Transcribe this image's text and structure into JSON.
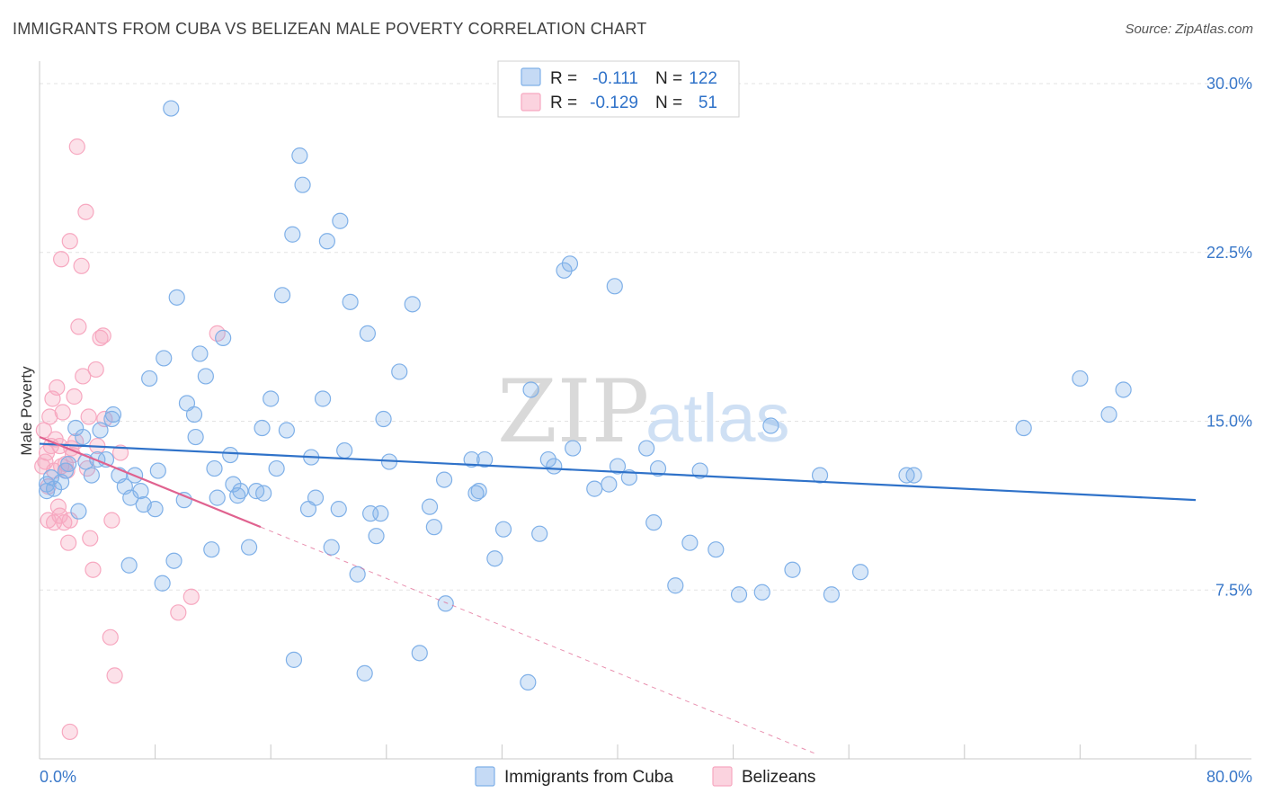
{
  "chart_data": {
    "type": "scatter",
    "title": "IMMIGRANTS FROM CUBA VS BELIZEAN MALE POVERTY CORRELATION CHART",
    "source": "Source: ZipAtlas.com",
    "xlabel": "",
    "ylabel": "Male Poverty",
    "xlim": [
      0,
      80
    ],
    "ylim": [
      0,
      31
    ],
    "x_tick_labels": [
      "0.0%",
      "80.0%"
    ],
    "y_ticks": [
      7.5,
      15.0,
      22.5,
      30.0
    ],
    "y_tick_labels": [
      "7.5%",
      "15.0%",
      "22.5%",
      "30.0%"
    ],
    "grid": true,
    "watermark": {
      "zip": "ZIP",
      "atlas": "atlas"
    },
    "legend_top": [
      {
        "r_label": "R =",
        "r_value": "-0.111",
        "n_label": "N =",
        "n_value": "122"
      },
      {
        "r_label": "R =",
        "r_value": "-0.129",
        "n_label": "N =",
        "n_value": "51"
      }
    ],
    "series": [
      {
        "name": "Immigrants from Cuba",
        "color": "#7fb0e8",
        "line_color": "#2f72c9",
        "trend": {
          "x0": 0,
          "y0": 14.0,
          "x1": 80,
          "y1": 11.5
        },
        "points": [
          [
            0.5,
            12.2
          ],
          [
            0.8,
            12.5
          ],
          [
            0.5,
            11.9
          ],
          [
            1.0,
            12.0
          ],
          [
            1.5,
            12.3
          ],
          [
            1.8,
            12.8
          ],
          [
            2.0,
            13.1
          ],
          [
            2.5,
            14.7
          ],
          [
            2.7,
            11.0
          ],
          [
            3.0,
            14.3
          ],
          [
            3.2,
            13.2
          ],
          [
            3.6,
            12.6
          ],
          [
            4.0,
            13.3
          ],
          [
            4.2,
            14.6
          ],
          [
            4.6,
            13.3
          ],
          [
            5.0,
            15.1
          ],
          [
            5.1,
            15.3
          ],
          [
            5.5,
            12.6
          ],
          [
            5.9,
            12.1
          ],
          [
            6.2,
            8.6
          ],
          [
            6.3,
            11.6
          ],
          [
            6.6,
            12.6
          ],
          [
            7.0,
            11.9
          ],
          [
            7.2,
            11.3
          ],
          [
            7.6,
            16.9
          ],
          [
            8.0,
            11.1
          ],
          [
            8.2,
            12.8
          ],
          [
            8.5,
            7.8
          ],
          [
            8.6,
            17.8
          ],
          [
            9.1,
            28.9
          ],
          [
            9.3,
            8.8
          ],
          [
            9.5,
            20.5
          ],
          [
            10.0,
            11.5
          ],
          [
            10.2,
            15.8
          ],
          [
            10.7,
            15.3
          ],
          [
            10.8,
            14.3
          ],
          [
            11.1,
            18.0
          ],
          [
            11.5,
            17.0
          ],
          [
            11.9,
            9.3
          ],
          [
            12.1,
            12.9
          ],
          [
            12.3,
            11.6
          ],
          [
            12.7,
            18.7
          ],
          [
            13.2,
            13.5
          ],
          [
            13.4,
            12.2
          ],
          [
            13.7,
            11.7
          ],
          [
            13.9,
            11.9
          ],
          [
            14.5,
            9.4
          ],
          [
            15.0,
            11.9
          ],
          [
            15.4,
            14.7
          ],
          [
            15.5,
            11.8
          ],
          [
            16.0,
            16.0
          ],
          [
            16.4,
            12.9
          ],
          [
            16.8,
            20.6
          ],
          [
            17.1,
            14.6
          ],
          [
            17.5,
            23.3
          ],
          [
            17.6,
            4.4
          ],
          [
            18.0,
            26.8
          ],
          [
            18.2,
            25.5
          ],
          [
            18.6,
            11.1
          ],
          [
            18.8,
            13.4
          ],
          [
            19.1,
            11.6
          ],
          [
            19.6,
            16.0
          ],
          [
            19.9,
            23.0
          ],
          [
            20.2,
            9.4
          ],
          [
            20.7,
            11.1
          ],
          [
            20.8,
            23.9
          ],
          [
            21.1,
            13.7
          ],
          [
            21.5,
            20.3
          ],
          [
            22.0,
            8.2
          ],
          [
            22.5,
            3.8
          ],
          [
            22.7,
            18.9
          ],
          [
            22.9,
            10.9
          ],
          [
            23.3,
            9.9
          ],
          [
            23.6,
            10.9
          ],
          [
            23.8,
            15.1
          ],
          [
            24.2,
            13.2
          ],
          [
            24.9,
            17.2
          ],
          [
            25.8,
            20.2
          ],
          [
            26.3,
            4.7
          ],
          [
            27.0,
            11.2
          ],
          [
            27.3,
            10.3
          ],
          [
            28.0,
            12.4
          ],
          [
            28.1,
            6.9
          ],
          [
            29.9,
            13.3
          ],
          [
            30.2,
            11.8
          ],
          [
            30.4,
            11.9
          ],
          [
            30.8,
            13.3
          ],
          [
            31.5,
            8.9
          ],
          [
            32.1,
            10.2
          ],
          [
            33.8,
            3.4
          ],
          [
            34.0,
            16.4
          ],
          [
            34.6,
            10.0
          ],
          [
            35.2,
            13.3
          ],
          [
            35.6,
            13.0
          ],
          [
            36.3,
            21.7
          ],
          [
            36.7,
            22.0
          ],
          [
            36.9,
            13.8
          ],
          [
            38.4,
            12.0
          ],
          [
            39.4,
            12.2
          ],
          [
            39.8,
            21.0
          ],
          [
            40.0,
            13.0
          ],
          [
            40.8,
            12.5
          ],
          [
            42.0,
            13.8
          ],
          [
            42.5,
            10.5
          ],
          [
            42.8,
            12.9
          ],
          [
            44.0,
            7.7
          ],
          [
            45.0,
            9.6
          ],
          [
            45.7,
            12.8
          ],
          [
            46.8,
            9.3
          ],
          [
            48.4,
            7.3
          ],
          [
            50.0,
            7.4
          ],
          [
            50.6,
            14.8
          ],
          [
            52.1,
            8.4
          ],
          [
            54.0,
            12.6
          ],
          [
            54.8,
            7.3
          ],
          [
            56.8,
            8.3
          ],
          [
            60.0,
            12.6
          ],
          [
            60.5,
            12.6
          ],
          [
            68.1,
            14.7
          ],
          [
            72.0,
            16.9
          ],
          [
            74.0,
            15.3
          ],
          [
            75.0,
            16.4
          ]
        ]
      },
      {
        "name": "Belizeans",
        "color": "#f7a8c0",
        "line_color": "#e0628f",
        "trend": {
          "x0": 0,
          "y0": 14.3,
          "x1": 15.3,
          "y1": 10.3
        },
        "trend_dashed": {
          "x0": 15.3,
          "y0": 10.3,
          "x1": 53.8,
          "y1": 0.2
        },
        "points": [
          [
            0.2,
            13.0
          ],
          [
            0.3,
            14.6
          ],
          [
            0.4,
            13.2
          ],
          [
            0.5,
            13.6
          ],
          [
            0.6,
            10.6
          ],
          [
            0.7,
            15.2
          ],
          [
            0.8,
            13.9
          ],
          [
            0.9,
            16.0
          ],
          [
            1.0,
            12.8
          ],
          [
            1.0,
            10.5
          ],
          [
            1.1,
            14.2
          ],
          [
            1.2,
            16.5
          ],
          [
            1.3,
            11.2
          ],
          [
            1.4,
            10.8
          ],
          [
            1.4,
            13.9
          ],
          [
            1.5,
            13.0
          ],
          [
            1.6,
            15.4
          ],
          [
            1.7,
            10.5
          ],
          [
            1.8,
            13.1
          ],
          [
            1.9,
            12.8
          ],
          [
            2.0,
            9.6
          ],
          [
            2.1,
            10.6
          ],
          [
            2.2,
            13.8
          ],
          [
            2.3,
            13.5
          ],
          [
            2.4,
            16.1
          ],
          [
            2.5,
            14.1
          ],
          [
            1.5,
            22.2
          ],
          [
            2.1,
            23.0
          ],
          [
            2.6,
            27.2
          ],
          [
            2.7,
            19.2
          ],
          [
            2.9,
            21.9
          ],
          [
            3.0,
            17.0
          ],
          [
            3.2,
            24.3
          ],
          [
            3.3,
            12.9
          ],
          [
            3.4,
            15.2
          ],
          [
            3.5,
            9.8
          ],
          [
            3.7,
            8.4
          ],
          [
            3.9,
            17.3
          ],
          [
            4.0,
            13.9
          ],
          [
            4.2,
            18.7
          ],
          [
            4.4,
            18.8
          ],
          [
            4.5,
            15.1
          ],
          [
            4.9,
            5.4
          ],
          [
            5.2,
            3.7
          ],
          [
            5.0,
            10.6
          ],
          [
            5.6,
            13.6
          ],
          [
            9.6,
            6.5
          ],
          [
            10.5,
            7.2
          ],
          [
            12.3,
            18.9
          ],
          [
            2.1,
            1.2
          ],
          [
            0.6,
            12.1
          ]
        ]
      }
    ]
  }
}
